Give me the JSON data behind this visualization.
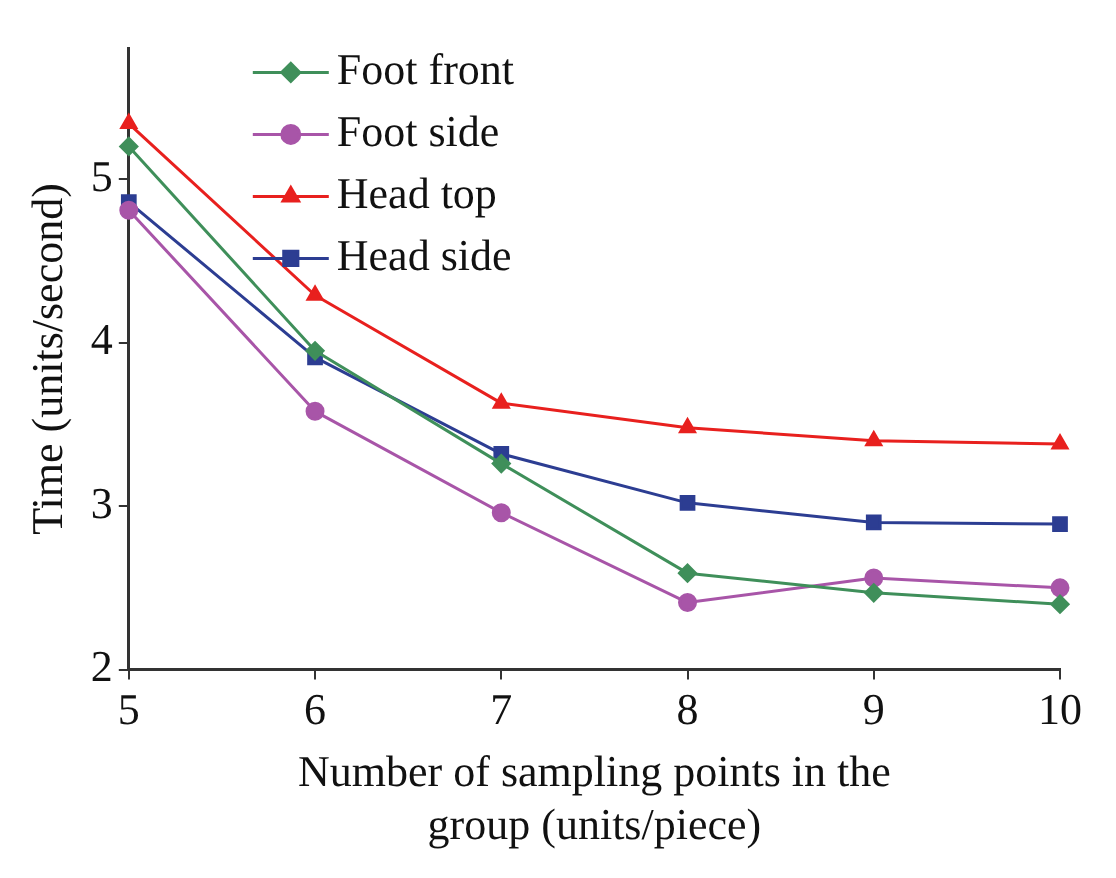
{
  "chart_data": {
    "type": "line",
    "xlabel": "Number of sampling points in the group (units/piece)",
    "ylabel": "Time (units/second)",
    "x": [
      5,
      6,
      7,
      8,
      9,
      10
    ],
    "series": [
      {
        "name": "Foot front",
        "color": "#3f8f5a",
        "marker": "diamond",
        "values": [
          5.2,
          3.95,
          3.26,
          2.59,
          2.47,
          2.4
        ]
      },
      {
        "name": "Foot side",
        "color": "#a855a8",
        "marker": "circle",
        "values": [
          4.81,
          3.58,
          2.96,
          2.41,
          2.56,
          2.5
        ]
      },
      {
        "name": "Head top",
        "color": "#e8201e",
        "marker": "triangle",
        "values": [
          5.34,
          4.29,
          3.63,
          3.48,
          3.4,
          3.38
        ]
      },
      {
        "name": "Head side",
        "color": "#2c3d92",
        "marker": "square",
        "values": [
          4.86,
          3.91,
          3.32,
          3.02,
          2.9,
          2.89
        ]
      }
    ],
    "xlim": [
      5,
      10
    ],
    "xticks": [
      5,
      6,
      7,
      8,
      9,
      10
    ],
    "ylim": [
      2,
      5.8
    ],
    "yticks": [
      2,
      3,
      4,
      5
    ],
    "grid": false,
    "legend": "top left",
    "line_style": "solid"
  }
}
